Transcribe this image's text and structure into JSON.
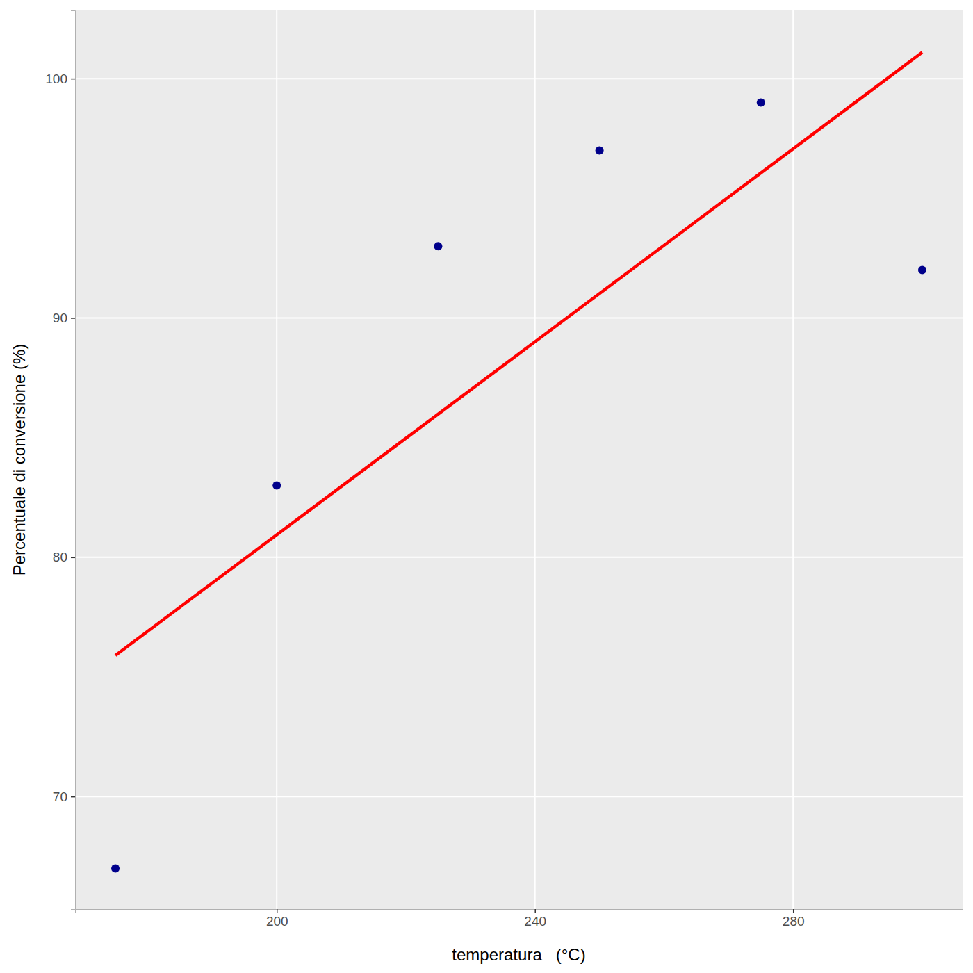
{
  "chart_data": {
    "type": "scatter",
    "x_label": "temperatura   (°C)",
    "y_label": "Percentuale di conversione (%)",
    "xlim": [
      168.75,
      306.25
    ],
    "xticks": [
      200,
      240,
      280
    ],
    "ylim": [
      65.3,
      102.85
    ],
    "yticks": [
      70,
      80,
      90,
      100
    ],
    "grid": true,
    "series": [
      {
        "type": "scatter",
        "color": "#00008b",
        "marker": "circle",
        "x": [
          175,
          200,
          225,
          250,
          275,
          300
        ],
        "values": [
          67,
          83,
          93,
          97,
          99,
          92
        ]
      },
      {
        "type": "line",
        "color": "#ff0000",
        "line_style": "solid",
        "x": [
          175,
          300
        ],
        "values": [
          75.9,
          101.1
        ]
      }
    ]
  }
}
